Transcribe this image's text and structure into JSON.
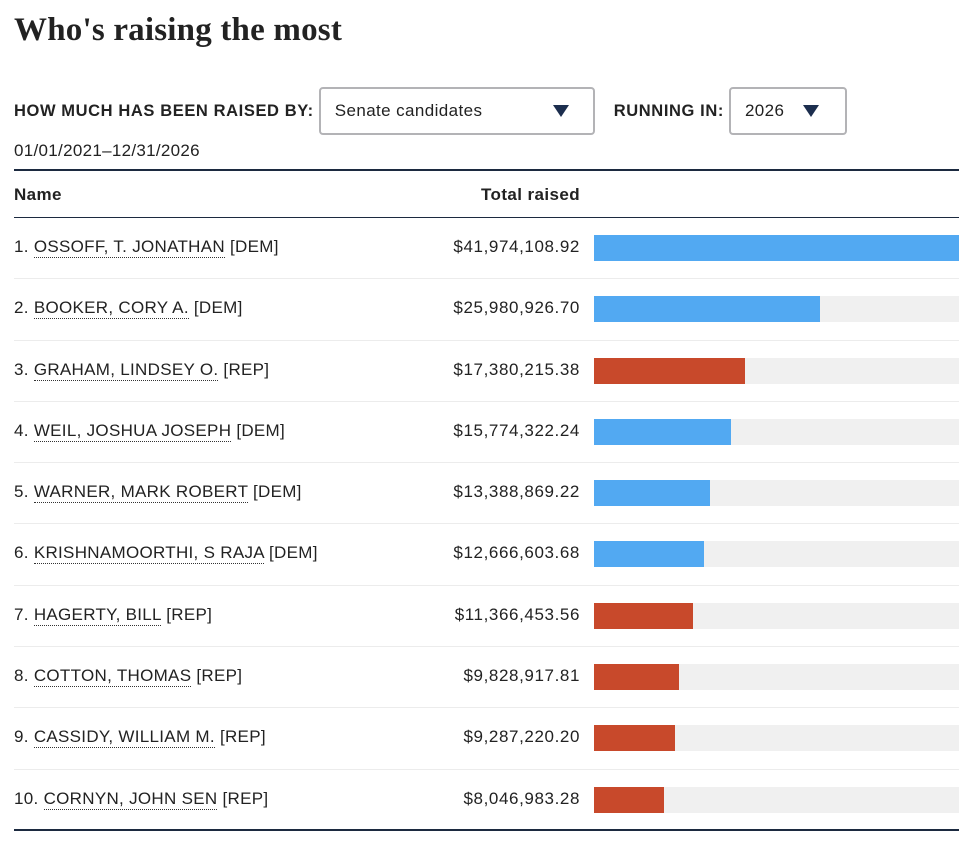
{
  "title": "Who's raising the most",
  "controls": {
    "raised_by_label": "HOW MUCH HAS BEEN RAISED BY:",
    "raised_by_value": "Senate candidates",
    "running_in_label": "RUNNING IN:",
    "running_in_value": "2026",
    "dropdown_icon": "triangle-down-icon"
  },
  "date_range": "01/01/2021–12/31/2026",
  "colors": {
    "DEM": "#52a9f2",
    "REP": "#c8492b",
    "track": "#f0f0f0",
    "rule": "#1c2a40"
  },
  "table": {
    "col_name": "Name",
    "col_total": "Total raised"
  },
  "chart_data": {
    "type": "bar",
    "orientation": "horizontal",
    "title": "Who's raising the most",
    "xlabel": "Total raised",
    "ylabel": "Name",
    "xlim": [
      0,
      41974108.92
    ],
    "categories": [
      "OSSOFF, T. JONATHAN",
      "BOOKER, CORY A.",
      "GRAHAM, LINDSEY O.",
      "WEIL, JOSHUA JOSEPH",
      "WARNER, MARK ROBERT",
      "KRISHNAMOORTHI, S RAJA",
      "HAGERTY, BILL",
      "COTTON, THOMAS",
      "CASSIDY, WILLIAM M.",
      "CORNYN, JOHN SEN"
    ],
    "values": [
      41974108.92,
      25980926.7,
      17380215.38,
      15774322.24,
      13388869.22,
      12666603.68,
      11366453.56,
      9828917.81,
      9287220.2,
      8046983.28
    ],
    "rows": [
      {
        "rank": "1.",
        "name": "OSSOFF, T. JONATHAN",
        "party": "[DEM]",
        "party_code": "DEM",
        "amount": "$41,974,108.92",
        "value": 41974108.92
      },
      {
        "rank": "2.",
        "name": "BOOKER, CORY A.",
        "party": "[DEM]",
        "party_code": "DEM",
        "amount": "$25,980,926.70",
        "value": 25980926.7
      },
      {
        "rank": "3.",
        "name": "GRAHAM, LINDSEY O.",
        "party": "[REP]",
        "party_code": "REP",
        "amount": "$17,380,215.38",
        "value": 17380215.38
      },
      {
        "rank": "4.",
        "name": "WEIL, JOSHUA JOSEPH",
        "party": "[DEM]",
        "party_code": "DEM",
        "amount": "$15,774,322.24",
        "value": 15774322.24
      },
      {
        "rank": "5.",
        "name": "WARNER, MARK ROBERT",
        "party": "[DEM]",
        "party_code": "DEM",
        "amount": "$13,388,869.22",
        "value": 13388869.22
      },
      {
        "rank": "6.",
        "name": "KRISHNAMOORTHI, S RAJA",
        "party": "[DEM]",
        "party_code": "DEM",
        "amount": "$12,666,603.68",
        "value": 12666603.68
      },
      {
        "rank": "7.",
        "name": "HAGERTY, BILL",
        "party": "[REP]",
        "party_code": "REP",
        "amount": "$11,366,453.56",
        "value": 11366453.56
      },
      {
        "rank": "8.",
        "name": "COTTON, THOMAS",
        "party": "[REP]",
        "party_code": "REP",
        "amount": "$9,828,917.81",
        "value": 9828917.81
      },
      {
        "rank": "9.",
        "name": "CASSIDY, WILLIAM M.",
        "party": "[REP]",
        "party_code": "REP",
        "amount": "$9,287,220.20",
        "value": 9287220.2
      },
      {
        "rank": "10.",
        "name": "CORNYN, JOHN SEN",
        "party": "[REP]",
        "party_code": "REP",
        "amount": "$8,046,983.28",
        "value": 8046983.28
      }
    ],
    "legend": {
      "DEM": "Democrat (blue)",
      "REP": "Republican (red)"
    },
    "grid": false
  }
}
